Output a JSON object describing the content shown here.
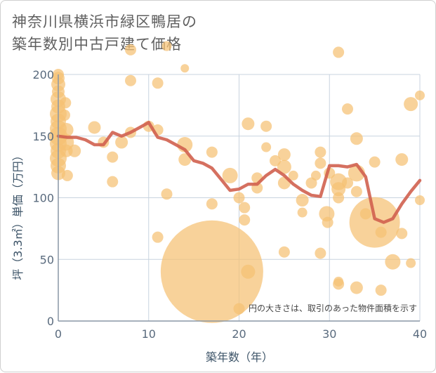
{
  "title": {
    "line1": "神奈川県横浜市緑区鴨居の",
    "line2": "築年数別中古戸建て価格"
  },
  "chart_data": {
    "type": "scatter",
    "title": "神奈川県横浜市緑区鴨居の築年数別中古戸建て価格",
    "xlabel": "築年数（年）",
    "ylabel": "坪（3.3㎡）単価（万円）",
    "xlim": [
      0,
      40
    ],
    "ylim": [
      0,
      200
    ],
    "xticks": [
      0,
      10,
      20,
      30,
      40
    ],
    "yticks": [
      0,
      50,
      100,
      150,
      200
    ],
    "x_tick_labels": [
      "0",
      "10",
      "20",
      "30",
      "40"
    ],
    "y_tick_labels": [
      "0",
      "50",
      "100",
      "150",
      "200"
    ],
    "grid": true,
    "note": "円の大きさは、取引のあった物件面積を示す",
    "colors": {
      "bubble": "#f5c173",
      "line": "#d0614f",
      "grid": "#c8d3df",
      "axis": "#8a97a5"
    },
    "series": [
      {
        "kind": "bubbles",
        "points": [
          {
            "x": 0,
            "y": 200,
            "s": 8
          },
          {
            "x": 0,
            "y": 197,
            "s": 9
          },
          {
            "x": 0,
            "y": 192,
            "s": 10
          },
          {
            "x": 0,
            "y": 186,
            "s": 9
          },
          {
            "x": 0,
            "y": 180,
            "s": 11
          },
          {
            "x": 0,
            "y": 174,
            "s": 10
          },
          {
            "x": 0,
            "y": 168,
            "s": 12
          },
          {
            "x": 0,
            "y": 162,
            "s": 11
          },
          {
            "x": 0,
            "y": 156,
            "s": 12
          },
          {
            "x": 0,
            "y": 150,
            "s": 13
          },
          {
            "x": 0,
            "y": 144,
            "s": 12
          },
          {
            "x": 0,
            "y": 138,
            "s": 11
          },
          {
            "x": 0,
            "y": 132,
            "s": 12
          },
          {
            "x": 0,
            "y": 126,
            "s": 11
          },
          {
            "x": 0,
            "y": 120,
            "s": 10
          },
          {
            "x": 0.8,
            "y": 177,
            "s": 8
          },
          {
            "x": 0.7,
            "y": 167,
            "s": 8
          },
          {
            "x": 0.9,
            "y": 155,
            "s": 10
          },
          {
            "x": 0.8,
            "y": 145,
            "s": 12
          },
          {
            "x": 0.9,
            "y": 138,
            "s": 9
          },
          {
            "x": 1.0,
            "y": 118,
            "s": 8
          },
          {
            "x": 1.8,
            "y": 138,
            "s": 9
          },
          {
            "x": 4,
            "y": 157,
            "s": 9
          },
          {
            "x": 5,
            "y": 145,
            "s": 8
          },
          {
            "x": 6,
            "y": 133,
            "s": 8
          },
          {
            "x": 6,
            "y": 113,
            "s": 8
          },
          {
            "x": 7,
            "y": 145,
            "s": 9
          },
          {
            "x": 8,
            "y": 220,
            "s": 8
          },
          {
            "x": 8,
            "y": 195,
            "s": 8
          },
          {
            "x": 8,
            "y": 153,
            "s": 8
          },
          {
            "x": 10,
            "y": 158,
            "s": 8
          },
          {
            "x": 11,
            "y": 193,
            "s": 8
          },
          {
            "x": 11,
            "y": 155,
            "s": 8
          },
          {
            "x": 11,
            "y": 68,
            "s": 8
          },
          {
            "x": 12,
            "y": 223,
            "s": 7
          },
          {
            "x": 12,
            "y": 103,
            "s": 8
          },
          {
            "x": 14,
            "y": 205,
            "s": 6
          },
          {
            "x": 14,
            "y": 143,
            "s": 11
          },
          {
            "x": 14,
            "y": 131,
            "s": 9
          },
          {
            "x": 17,
            "y": 137,
            "s": 8
          },
          {
            "x": 17,
            "y": 95,
            "s": 8
          },
          {
            "x": 17,
            "y": 40,
            "s": 73
          },
          {
            "x": 19,
            "y": 118,
            "s": 11
          },
          {
            "x": 20,
            "y": 100,
            "s": 8
          },
          {
            "x": 20,
            "y": 10,
            "s": 8
          },
          {
            "x": 20.6,
            "y": 92,
            "s": 8
          },
          {
            "x": 20.6,
            "y": 82,
            "s": 8
          },
          {
            "x": 21,
            "y": 160,
            "s": 9
          },
          {
            "x": 21,
            "y": 40,
            "s": 10
          },
          {
            "x": 22,
            "y": 116,
            "s": 8
          },
          {
            "x": 22,
            "y": 108,
            "s": 8
          },
          {
            "x": 23,
            "y": 158,
            "s": 8
          },
          {
            "x": 23,
            "y": 141,
            "s": 7
          },
          {
            "x": 24,
            "y": 130,
            "s": 8
          },
          {
            "x": 25,
            "y": 135,
            "s": 9
          },
          {
            "x": 25,
            "y": 125,
            "s": 10
          },
          {
            "x": 25,
            "y": 112,
            "s": 9
          },
          {
            "x": 25,
            "y": 56,
            "s": 8
          },
          {
            "x": 26,
            "y": 118,
            "s": 7
          },
          {
            "x": 27,
            "y": 98,
            "s": 9
          },
          {
            "x": 27,
            "y": 88,
            "s": 7
          },
          {
            "x": 28,
            "y": 112,
            "s": 8
          },
          {
            "x": 28.5,
            "y": 118,
            "s": 7
          },
          {
            "x": 29,
            "y": 137,
            "s": 8
          },
          {
            "x": 29,
            "y": 128,
            "s": 8
          },
          {
            "x": 29,
            "y": 55,
            "s": 8
          },
          {
            "x": 29.7,
            "y": 87,
            "s": 11
          },
          {
            "x": 29.8,
            "y": 80,
            "s": 8
          },
          {
            "x": 30,
            "y": 120,
            "s": 8
          },
          {
            "x": 31,
            "y": 218,
            "s": 8
          },
          {
            "x": 31,
            "y": 113,
            "s": 12
          },
          {
            "x": 31,
            "y": 107,
            "s": 10
          },
          {
            "x": 31,
            "y": 100,
            "s": 8
          },
          {
            "x": 31,
            "y": 32,
            "s": 7
          },
          {
            "x": 31,
            "y": 30,
            "s": 8
          },
          {
            "x": 32,
            "y": 172,
            "s": 8
          },
          {
            "x": 32,
            "y": 112,
            "s": 8
          },
          {
            "x": 33,
            "y": 148,
            "s": 9
          },
          {
            "x": 33,
            "y": 120,
            "s": 12
          },
          {
            "x": 33,
            "y": 105,
            "s": 8
          },
          {
            "x": 33,
            "y": 27,
            "s": 9
          },
          {
            "x": 34,
            "y": 87,
            "s": 8
          },
          {
            "x": 35,
            "y": 129,
            "s": 8
          },
          {
            "x": 35,
            "y": 80,
            "s": 36
          },
          {
            "x": 35.7,
            "y": 72,
            "s": 8
          },
          {
            "x": 35.7,
            "y": 25,
            "s": 8
          },
          {
            "x": 37,
            "y": 48,
            "s": 11
          },
          {
            "x": 38,
            "y": 131,
            "s": 9
          },
          {
            "x": 38,
            "y": 71,
            "s": 8
          },
          {
            "x": 39,
            "y": 176,
            "s": 10
          },
          {
            "x": 39,
            "y": 47,
            "s": 7
          },
          {
            "x": 40,
            "y": 183,
            "s": 7
          },
          {
            "x": 40,
            "y": 98,
            "s": 7
          }
        ]
      },
      {
        "kind": "line",
        "x": [
          0,
          1,
          2,
          3,
          4,
          5,
          6,
          7,
          8,
          9,
          10,
          11,
          12,
          13,
          14,
          15,
          16,
          17,
          18,
          19,
          20,
          21,
          22,
          23,
          24,
          25,
          26,
          27,
          28,
          29,
          30,
          31,
          32,
          33,
          34,
          35,
          36,
          37,
          38,
          39,
          40
        ],
        "y": [
          150,
          149,
          149,
          147,
          143,
          143,
          153,
          150,
          153,
          157,
          161,
          149,
          147,
          143,
          139,
          130,
          128,
          124,
          115,
          106,
          107,
          111,
          111,
          118,
          123,
          118,
          111,
          106,
          102,
          101,
          126,
          126,
          125,
          127,
          117,
          83,
          80,
          83,
          95,
          105,
          114
        ]
      }
    ]
  }
}
